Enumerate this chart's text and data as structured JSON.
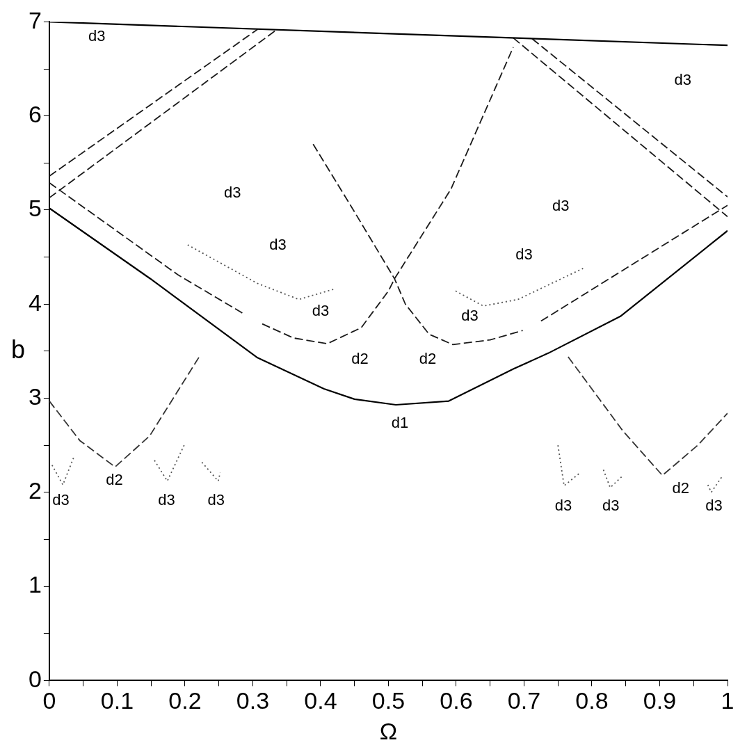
{
  "chart_data": {
    "type": "line",
    "xlabel": "Ω",
    "ylabel": "b",
    "xlim": [
      0,
      1
    ],
    "ylim": [
      0,
      7
    ],
    "xticks": [
      0,
      {
        "value": 0.05,
        "label": null
      },
      0.1,
      {
        "value": 0.15,
        "label": null
      },
      0.2,
      {
        "value": 0.25,
        "label": null
      },
      0.3,
      {
        "value": 0.35,
        "label": null
      },
      0.4,
      {
        "value": 0.45,
        "label": null
      },
      0.5,
      {
        "value": 0.55,
        "label": null
      },
      0.6,
      {
        "value": 0.65,
        "label": null
      },
      0.7,
      {
        "value": 0.75,
        "label": null
      },
      0.8,
      {
        "value": 0.85,
        "label": null
      },
      0.9,
      {
        "value": 0.95,
        "label": null
      },
      1
    ],
    "yticks": [
      0,
      {
        "value": 0.5,
        "label": null
      },
      1,
      {
        "value": 1.5,
        "label": null
      },
      2,
      {
        "value": 2.5,
        "label": null
      },
      3,
      {
        "value": 3.5,
        "label": null
      },
      4,
      {
        "value": 4.5,
        "label": null
      },
      5,
      {
        "value": 5.5,
        "label": null
      },
      6,
      {
        "value": 6.5,
        "label": null
      },
      7
    ],
    "series": [
      {
        "type": "line",
        "color": "#000000",
        "line_style": "solid",
        "x": [
          0,
          1
        ],
        "values": [
          7,
          6.75
        ]
      },
      {
        "type": "line",
        "color": "#000000",
        "line_style": "solid",
        "x": [
          0,
          0.149,
          0.307,
          0.405,
          0.45,
          0.511,
          0.589,
          0.684,
          0.736,
          0.842,
          1
        ],
        "values": [
          5.02,
          4.27,
          3.43,
          3.1,
          2.99,
          2.93,
          2.97,
          3.31,
          3.48,
          3.87,
          4.78
        ]
      },
      {
        "type": "line",
        "color": "#1a1a1a",
        "line_style": "dashed",
        "x": [
          0,
          0.19,
          0.286
        ],
        "values": [
          5.29,
          4.31,
          3.9
        ]
      },
      {
        "type": "line",
        "color": "#1a1a1a",
        "line_style": "dashed",
        "x": [
          0.725,
          1
        ],
        "values": [
          3.82,
          5.05
        ]
      },
      {
        "type": "line",
        "color": "#1a1a1a",
        "line_style": "dashed",
        "x": [
          0.314,
          0.36,
          0.41,
          0.46,
          0.5,
          0.509,
          0.592,
          0.684
        ],
        "values": [
          3.79,
          3.64,
          3.58,
          3.75,
          4.14,
          4.27,
          5.22,
          6.73
        ]
      },
      {
        "type": "line",
        "color": "#1a1a1a",
        "line_style": "dashed",
        "x": [
          0.389,
          0.45,
          0.509,
          0.525,
          0.56,
          0.595,
          0.65,
          0.698
        ],
        "values": [
          5.7,
          4.98,
          4.27,
          4.0,
          3.68,
          3.57,
          3.62,
          3.72
        ]
      },
      {
        "type": "line",
        "color": "#1a1a1a",
        "line_style": "dashed",
        "x": [
          0,
          0.307
        ],
        "values": [
          5.36,
          6.92
        ]
      },
      {
        "type": "line",
        "color": "#1a1a1a",
        "line_style": "dashed",
        "x": [
          0,
          0.334
        ],
        "values": [
          5.13,
          6.91
        ]
      },
      {
        "type": "line",
        "color": "#1a1a1a",
        "line_style": "dashed",
        "x": [
          0.684,
          1
        ],
        "values": [
          6.83,
          4.93
        ]
      },
      {
        "type": "line",
        "color": "#1a1a1a",
        "line_style": "dashed",
        "x": [
          0.712,
          1
        ],
        "values": [
          6.82,
          5.14
        ]
      },
      {
        "type": "line",
        "color": "#333333",
        "line_style": "dashed",
        "x": [
          0,
          0.045,
          0.097,
          0.148,
          0.221
        ],
        "values": [
          2.97,
          2.55,
          2.27,
          2.6,
          3.44
        ]
      },
      {
        "type": "line",
        "color": "#333333",
        "line_style": "dashed",
        "x": [
          0.765,
          0.846,
          0.904,
          0.956,
          1
        ],
        "values": [
          3.44,
          2.65,
          2.18,
          2.5,
          2.84
        ]
      },
      {
        "type": "line",
        "color": "#555555",
        "line_style": "dotted",
        "x": [
          0.204,
          0.307,
          0.368,
          0.42
        ],
        "values": [
          4.63,
          4.22,
          4.05,
          4.16
        ]
      },
      {
        "type": "line",
        "color": "#555555",
        "line_style": "dotted",
        "x": [
          0.599,
          0.64,
          0.691,
          0.787
        ],
        "values": [
          4.14,
          3.98,
          4.05,
          4.38
        ]
      },
      {
        "type": "line",
        "color": "#555555",
        "line_style": "dotted",
        "x": [
          0.004,
          0.02,
          0.037
        ],
        "values": [
          2.29,
          2.08,
          2.39
        ]
      },
      {
        "type": "line",
        "color": "#555555",
        "line_style": "dotted",
        "x": [
          0.155,
          0.174,
          0.2
        ],
        "values": [
          2.34,
          2.12,
          2.52
        ]
      },
      {
        "type": "line",
        "color": "#555555",
        "line_style": "dotted",
        "x": [
          0.225,
          0.249,
          0.252
        ],
        "values": [
          2.32,
          2.12,
          2.21
        ]
      },
      {
        "type": "line",
        "color": "#555555",
        "line_style": "dotted",
        "x": [
          0.75,
          0.759,
          0.783
        ],
        "values": [
          2.5,
          2.07,
          2.21
        ]
      },
      {
        "type": "line",
        "color": "#555555",
        "line_style": "dotted",
        "x": [
          0.817,
          0.827,
          0.846
        ],
        "values": [
          2.24,
          2.05,
          2.18
        ]
      },
      {
        "type": "line",
        "color": "#555555",
        "line_style": "dotted",
        "x": [
          0.971,
          0.976,
          0.993
        ],
        "values": [
          2.08,
          2.0,
          2.18
        ]
      }
    ],
    "annotations": [
      "d3",
      "d3",
      "d3",
      "d3",
      "d3",
      "d3",
      "d3",
      "d3",
      "d2",
      "d2",
      "d1",
      "d2",
      "d2",
      "d3",
      "d3",
      "d3",
      "d3",
      "d3",
      "d3"
    ]
  }
}
